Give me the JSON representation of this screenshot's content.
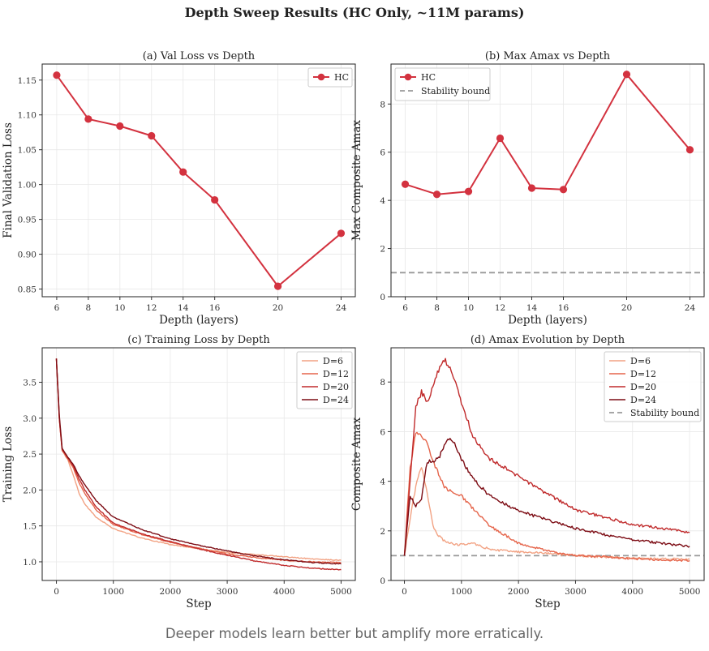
{
  "figure": {
    "title": "Depth Sweep Results (HC Only, ~11M params)",
    "caption": "Deeper models learn better but amplify more erratically."
  },
  "chart_data": [
    {
      "type": "line",
      "title": "(a) Val Loss vs Depth",
      "xlabel": "Depth (layers)",
      "ylabel": "Final Validation Loss",
      "x": [
        6,
        8,
        10,
        12,
        14,
        16,
        20,
        24
      ],
      "xticks": [
        "6",
        "8",
        "10",
        "12",
        "14",
        "16",
        "20",
        "24"
      ],
      "yticks": [
        "0.85",
        "0.90",
        "0.95",
        "1.00",
        "1.05",
        "1.10",
        "1.15"
      ],
      "xlim": [
        5.08,
        24.9
      ],
      "ylim": [
        0.839,
        1.173
      ],
      "grid": true,
      "legend": "top-right",
      "series": [
        {
          "name": "HC",
          "color": "#d3323f",
          "marker": "circle",
          "values": [
            1.157,
            1.094,
            1.084,
            1.07,
            1.018,
            0.978,
            0.854,
            0.93
          ]
        }
      ]
    },
    {
      "type": "line",
      "title": "(b) Max Amax vs Depth",
      "xlabel": "Depth (layers)",
      "ylabel": "Max Composite Amax",
      "x": [
        6,
        8,
        10,
        12,
        14,
        16,
        20,
        24
      ],
      "xticks": [
        "6",
        "8",
        "10",
        "12",
        "14",
        "16",
        "20",
        "24"
      ],
      "yticks": [
        "0",
        "2",
        "4",
        "6",
        "8"
      ],
      "xlim": [
        5.1,
        24.9
      ],
      "ylim": [
        0,
        9.66
      ],
      "grid": true,
      "legend": "top-left",
      "series": [
        {
          "name": "HC",
          "color": "#d3323f",
          "marker": "circle",
          "values": [
            4.67,
            4.25,
            4.37,
            6.58,
            4.51,
            4.45,
            9.23,
            6.1
          ]
        }
      ],
      "hlines": [
        {
          "name": "Stability bound",
          "y": 1.0,
          "color": "#999999",
          "style": "dashed"
        }
      ]
    },
    {
      "type": "line",
      "title": "(c) Training Loss by Depth",
      "xlabel": "Step",
      "ylabel": "Training Loss",
      "x": [
        0,
        50,
        100,
        200,
        300,
        400,
        500,
        700,
        1000,
        1500,
        2000,
        2500,
        3000,
        3500,
        4000,
        4500,
        5000
      ],
      "xticks": [
        "0",
        "1000",
        "2000",
        "3000",
        "4000",
        "5000"
      ],
      "yticks": [
        "1.0",
        "1.5",
        "2.0",
        "2.5",
        "3.0",
        "3.5"
      ],
      "xlim": [
        -250,
        5250
      ],
      "ylim": [
        0.74,
        3.98
      ],
      "grid": true,
      "legend": "top-right",
      "series": [
        {
          "name": "D=6",
          "color": "#f2a283",
          "values": [
            3.83,
            3.0,
            2.55,
            2.42,
            2.2,
            1.95,
            1.8,
            1.62,
            1.46,
            1.33,
            1.24,
            1.18,
            1.13,
            1.1,
            1.07,
            1.04,
            1.02
          ]
        },
        {
          "name": "D=12",
          "color": "#e5654b",
          "values": [
            3.83,
            3.0,
            2.55,
            2.43,
            2.3,
            2.1,
            1.95,
            1.72,
            1.52,
            1.38,
            1.27,
            1.19,
            1.11,
            1.06,
            1.02,
            1.0,
            0.99
          ]
        },
        {
          "name": "D=20",
          "color": "#c02a2b",
          "values": [
            3.83,
            3.0,
            2.57,
            2.45,
            2.33,
            2.15,
            2.0,
            1.76,
            1.54,
            1.39,
            1.28,
            1.18,
            1.09,
            1.01,
            0.95,
            0.91,
            0.89
          ]
        },
        {
          "name": "D=24",
          "color": "#7c0b13",
          "values": [
            3.83,
            3.05,
            2.58,
            2.46,
            2.35,
            2.2,
            2.07,
            1.85,
            1.62,
            1.45,
            1.32,
            1.23,
            1.15,
            1.08,
            1.03,
            0.99,
            0.97
          ]
        }
      ]
    },
    {
      "type": "line",
      "title": "(d) Amax Evolution by Depth",
      "xlabel": "Step",
      "ylabel": "Composite Amax",
      "x": [
        0,
        100,
        200,
        300,
        400,
        500,
        600,
        700,
        800,
        900,
        1000,
        1200,
        1500,
        2000,
        2500,
        3000,
        3500,
        4000,
        4500,
        5000
      ],
      "xticks": [
        "0",
        "1000",
        "2000",
        "3000",
        "4000",
        "5000"
      ],
      "yticks": [
        "0",
        "2",
        "4",
        "6",
        "8"
      ],
      "xlim": [
        -235,
        5255
      ],
      "ylim": [
        0,
        9.38
      ],
      "grid": true,
      "legend": "top-right",
      "series": [
        {
          "name": "D=6",
          "color": "#f2a283",
          "values": [
            1.0,
            2.5,
            3.8,
            4.6,
            3.5,
            2.2,
            1.8,
            1.6,
            1.5,
            1.45,
            1.45,
            1.5,
            1.25,
            1.15,
            1.1,
            1.0,
            0.95,
            0.9,
            0.87,
            0.85
          ]
        },
        {
          "name": "D=12",
          "color": "#e5654b",
          "values": [
            1.0,
            4.5,
            6.0,
            5.8,
            5.6,
            4.8,
            4.3,
            3.8,
            3.6,
            3.5,
            3.4,
            2.9,
            2.2,
            1.5,
            1.2,
            1.0,
            0.95,
            0.88,
            0.82,
            0.8
          ]
        },
        {
          "name": "D=20",
          "color": "#c02a2b",
          "values": [
            1.0,
            4.0,
            7.0,
            7.6,
            7.2,
            7.8,
            8.5,
            8.9,
            8.6,
            7.9,
            7.2,
            5.8,
            4.9,
            4.2,
            3.5,
            2.85,
            2.55,
            2.26,
            2.1,
            1.93
          ]
        },
        {
          "name": "D=24",
          "color": "#7c0b13",
          "values": [
            1.0,
            3.4,
            3.0,
            3.3,
            4.8,
            4.8,
            4.9,
            5.5,
            5.8,
            5.4,
            4.9,
            4.1,
            3.4,
            2.8,
            2.45,
            2.1,
            1.85,
            1.65,
            1.5,
            1.38
          ]
        }
      ],
      "hlines": [
        {
          "name": "Stability bound",
          "y": 1.0,
          "color": "#999999",
          "style": "dashed"
        }
      ]
    }
  ]
}
